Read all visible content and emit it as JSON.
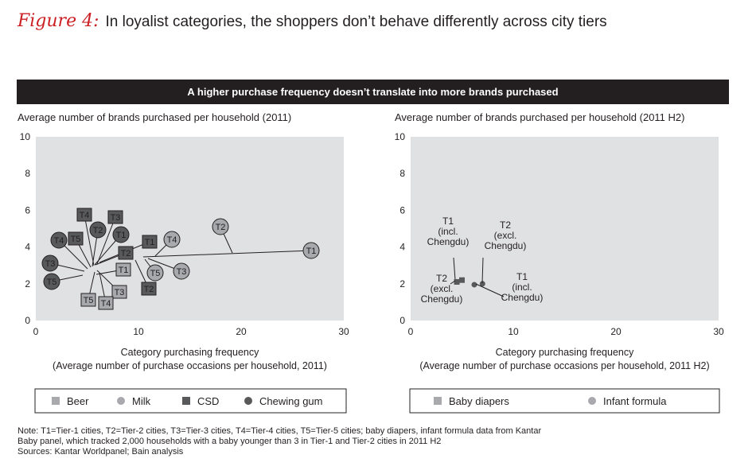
{
  "figure": {
    "label": "Figure 4:",
    "title": "In loyalist categories, the shoppers don’t behave differently across city tiers",
    "banner": "A higher purchase frequency doesn’t translate into more brands purchased"
  },
  "footnote": {
    "lines": [
      "Note: T1=Tier-1 cities, T2=Tier-2 cities, T3=Tier-3 cities, T4=Tier-4 cities, T5=Tier-5 cities; baby diapers, infant formula data from Kantar",
      "Baby panel, which tracked 2,000 households with a baby younger than 3 in Tier-1 and Tier-2 cities in 2011 H2",
      "Sources: Kantar Worldpanel; Bain analysis"
    ]
  },
  "colors": {
    "plot_bg": "#e0e1e2",
    "light_gray": "#a7a9ac",
    "dark_gray": "#58595b",
    "black": "#231f20",
    "accent_red": "#cc1f24"
  },
  "chart_data": [
    {
      "type": "scatter",
      "title": "Average number of brands purchased per household (2011)",
      "xlabel": "Category purchasing frequency",
      "xlabel2": "(Average number of purchase occasions per household, 2011)",
      "xlim": [
        0,
        30
      ],
      "ylim": [
        0,
        10
      ],
      "xticks": [
        "0",
        "10",
        "20",
        "30"
      ],
      "yticks": [
        "0",
        "2",
        "4",
        "6",
        "8",
        "10"
      ],
      "grid": false,
      "legend_position": "bottom",
      "series": [
        {
          "name": "Beer",
          "marker": "square",
          "color": "#a7a9ac",
          "points": [
            {
              "label": "T1",
              "x": 8.5,
              "y": 2.7
            },
            {
              "label": "T3",
              "x": 8.0,
              "y": 1.5
            },
            {
              "label": "T5",
              "x": 5.3,
              "y": 1.1
            },
            {
              "label": "T4",
              "x": 7.0,
              "y": 0.9
            }
          ]
        },
        {
          "name": "Milk",
          "marker": "circle",
          "color": "#a7a9ac",
          "points": [
            {
              "label": "T2",
              "x": 18.0,
              "y": 5.1
            },
            {
              "label": "T1",
              "x": 27.0,
              "y": 3.9
            },
            {
              "label": "T4",
              "x": 13.0,
              "y": 4.4
            },
            {
              "label": "T5",
              "x": 11.5,
              "y": 2.6
            },
            {
              "label": "T3",
              "x": 14.5,
              "y": 2.7
            }
          ]
        },
        {
          "name": "CSD",
          "marker": "square",
          "color": "#58595b",
          "points": [
            {
              "label": "T4",
              "x": 5.0,
              "y": 5.8
            },
            {
              "label": "T3",
              "x": 7.8,
              "y": 5.7
            },
            {
              "label": "T5",
              "x": 4.0,
              "y": 4.5
            },
            {
              "label": "T1",
              "x": 11.0,
              "y": 4.4
            },
            {
              "label": "T2",
              "x": 8.8,
              "y": 3.7
            },
            {
              "label": "T2",
              "x": 11.0,
              "y": 1.7
            }
          ]
        },
        {
          "name": "Chewing gum",
          "marker": "circle",
          "color": "#58595b",
          "points": [
            {
              "label": "T2",
              "x": 6.0,
              "y": 5.1
            },
            {
              "label": "T1",
              "x": 8.5,
              "y": 4.8
            },
            {
              "label": "T4",
              "x": 2.2,
              "y": 4.4
            },
            {
              "label": "T3",
              "x": 1.5,
              "y": 3.1
            },
            {
              "label": "T5",
              "x": 1.5,
              "y": 2.1
            }
          ]
        }
      ]
    },
    {
      "type": "scatter",
      "title": "Average number of brands purchased per household (2011 H2)",
      "xlabel": "Category purchasing frequency",
      "xlabel2": "(Average number of purchase occasions per household, 2011 H2)",
      "xlim": [
        0,
        30
      ],
      "ylim": [
        0,
        10
      ],
      "xticks": [
        "0",
        "10",
        "20",
        "30"
      ],
      "yticks": [
        "0",
        "2",
        "4",
        "6",
        "8",
        "10"
      ],
      "grid": false,
      "legend_position": "bottom",
      "series": [
        {
          "name": "Baby diapers",
          "marker": "square",
          "color": "#a7a9ac",
          "points": [
            {
              "label": [
                "T1",
                "(incl.",
                "Chengdu)"
              ],
              "x": 5.0,
              "y": 2.2
            },
            {
              "label": [
                "T2",
                "(excl.",
                "Chengdu)"
              ],
              "x": 4.5,
              "y": 2.1
            }
          ]
        },
        {
          "name": "Infant formula",
          "marker": "circle",
          "color": "#a7a9ac",
          "points": [
            {
              "label": [
                "T2",
                "(excl.",
                "Chengdu)"
              ],
              "x": 7.0,
              "y": 2.0
            },
            {
              "label": [
                "T1",
                "(incl.",
                "Chengdu)"
              ],
              "x": 6.2,
              "y": 1.95
            }
          ]
        }
      ]
    }
  ]
}
